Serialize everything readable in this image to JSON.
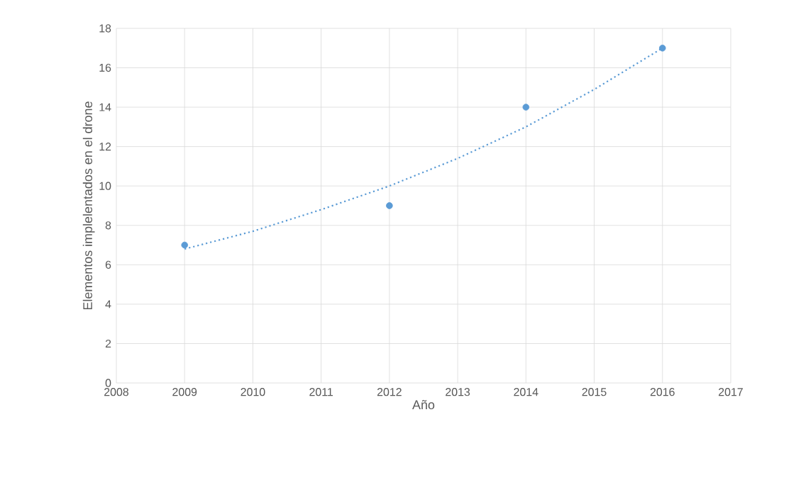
{
  "chart_data": {
    "type": "scatter",
    "xlabel": "Año",
    "ylabel": "Elementos implelentados en el drone",
    "xlim": [
      2008,
      2017
    ],
    "xticks": [
      2008,
      2009,
      2010,
      2011,
      2012,
      2013,
      2014,
      2015,
      2016,
      2017
    ],
    "ylim": [
      0,
      18
    ],
    "yticks": [
      0,
      2,
      4,
      6,
      8,
      10,
      12,
      14,
      16,
      18
    ],
    "grid": true,
    "series": [
      {
        "color": "#5b9bd5",
        "marker": "circle",
        "x": [
          2009,
          2012,
          2014,
          2016
        ],
        "values": [
          7,
          9,
          14,
          17
        ]
      },
      {
        "type": "line",
        "color": "#5b9bd5",
        "marker": "none",
        "line_style": "dotted",
        "x": [
          2009,
          2010,
          2011,
          2012,
          2013,
          2014,
          2015,
          2016
        ],
        "values": [
          6.8,
          7.7,
          8.8,
          10,
          11.4,
          13,
          14.9,
          17
        ]
      }
    ]
  }
}
